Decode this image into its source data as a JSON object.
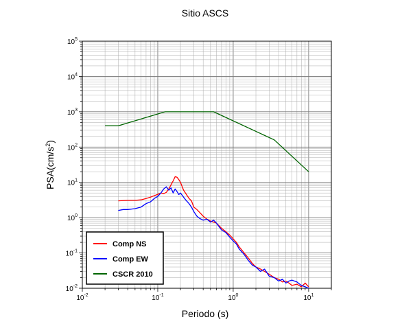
{
  "chart_data": {
    "type": "line",
    "title": "Sitio ASCS",
    "xlabel": "Periodo (s)",
    "ylabel_base": "PSA(cm/s",
    "ylabel_sup": "2",
    "ylabel_close": ")",
    "x_scale": "log",
    "y_scale": "log",
    "xlim": [
      0.01,
      20
    ],
    "ylim": [
      0.01,
      100000
    ],
    "grid": true,
    "legend_position": "bottom-left",
    "x_ticks": [
      {
        "base": "10",
        "exp": "-2",
        "value": 0.01
      },
      {
        "base": "10",
        "exp": "-1",
        "value": 0.1
      },
      {
        "base": "10",
        "exp": "0",
        "value": 1
      },
      {
        "base": "10",
        "exp": "1",
        "value": 10
      }
    ],
    "y_ticks": [
      {
        "base": "10",
        "exp": "-2",
        "value": 0.01
      },
      {
        "base": "10",
        "exp": "-1",
        "value": 0.1
      },
      {
        "base": "10",
        "exp": "0",
        "value": 1
      },
      {
        "base": "10",
        "exp": "1",
        "value": 10
      },
      {
        "base": "10",
        "exp": "2",
        "value": 100
      },
      {
        "base": "10",
        "exp": "3",
        "value": 1000
      },
      {
        "base": "10",
        "exp": "4",
        "value": 10000
      },
      {
        "base": "10",
        "exp": "5",
        "value": 100000
      }
    ],
    "series": [
      {
        "name": "Comp NS",
        "color": "#ff0000",
        "x": [
          0.03,
          0.04,
          0.05,
          0.06,
          0.07,
          0.08,
          0.09,
          0.1,
          0.11,
          0.12,
          0.13,
          0.14,
          0.15,
          0.16,
          0.17,
          0.18,
          0.19,
          0.2,
          0.22,
          0.24,
          0.26,
          0.28,
          0.3,
          0.33,
          0.36,
          0.4,
          0.45,
          0.5,
          0.55,
          0.6,
          0.7,
          0.8,
          0.9,
          1.0,
          1.1,
          1.2,
          1.4,
          1.6,
          1.8,
          2.0,
          2.3,
          2.6,
          3.0,
          3.5,
          4.0,
          4.5,
          5.0,
          5.5,
          6.0,
          7.0,
          8.0,
          9.0,
          10.0
        ],
        "y": [
          3.0,
          3.1,
          3.1,
          3.2,
          3.5,
          3.8,
          4.2,
          4.6,
          5.0,
          4.8,
          5.2,
          6.5,
          8.5,
          11.0,
          14.5,
          14.0,
          12.0,
          10.0,
          6.0,
          4.5,
          3.5,
          3.0,
          2.0,
          1.7,
          1.4,
          1.1,
          0.9,
          0.8,
          0.75,
          0.7,
          0.5,
          0.4,
          0.32,
          0.25,
          0.2,
          0.15,
          0.1,
          0.07,
          0.05,
          0.04,
          0.035,
          0.03,
          0.025,
          0.02,
          0.018,
          0.015,
          0.016,
          0.014,
          0.012,
          0.013,
          0.011,
          0.014,
          0.011
        ]
      },
      {
        "name": "Comp EW",
        "color": "#0000ff",
        "x": [
          0.03,
          0.035,
          0.04,
          0.05,
          0.06,
          0.07,
          0.08,
          0.09,
          0.1,
          0.11,
          0.12,
          0.13,
          0.14,
          0.15,
          0.16,
          0.17,
          0.18,
          0.19,
          0.2,
          0.22,
          0.24,
          0.26,
          0.28,
          0.3,
          0.33,
          0.36,
          0.4,
          0.45,
          0.5,
          0.55,
          0.6,
          0.7,
          0.8,
          0.9,
          1.0,
          1.1,
          1.2,
          1.4,
          1.6,
          1.8,
          2.0,
          2.3,
          2.6,
          3.0,
          3.5,
          4.0,
          4.5,
          5.0,
          5.5,
          6.0,
          7.0,
          8.0,
          9.0,
          10.0
        ],
        "y": [
          1.6,
          1.7,
          1.7,
          1.8,
          2.0,
          2.5,
          2.8,
          3.5,
          4.0,
          5.0,
          6.5,
          7.5,
          6.0,
          7.0,
          5.0,
          6.5,
          5.5,
          4.5,
          5.0,
          3.8,
          3.0,
          2.5,
          2.0,
          1.5,
          1.1,
          0.95,
          0.85,
          0.9,
          0.75,
          0.85,
          0.7,
          0.45,
          0.38,
          0.28,
          0.22,
          0.18,
          0.13,
          0.09,
          0.06,
          0.045,
          0.04,
          0.03,
          0.035,
          0.022,
          0.02,
          0.016,
          0.018,
          0.014,
          0.016,
          0.017,
          0.015,
          0.012,
          0.011,
          0.01
        ]
      },
      {
        "name": "CSCR 2010",
        "color": "#006400",
        "x": [
          0.02,
          0.03,
          0.125,
          0.55,
          3.5,
          10.0
        ],
        "y": [
          400,
          400,
          1000,
          1000,
          160,
          20
        ]
      }
    ]
  }
}
